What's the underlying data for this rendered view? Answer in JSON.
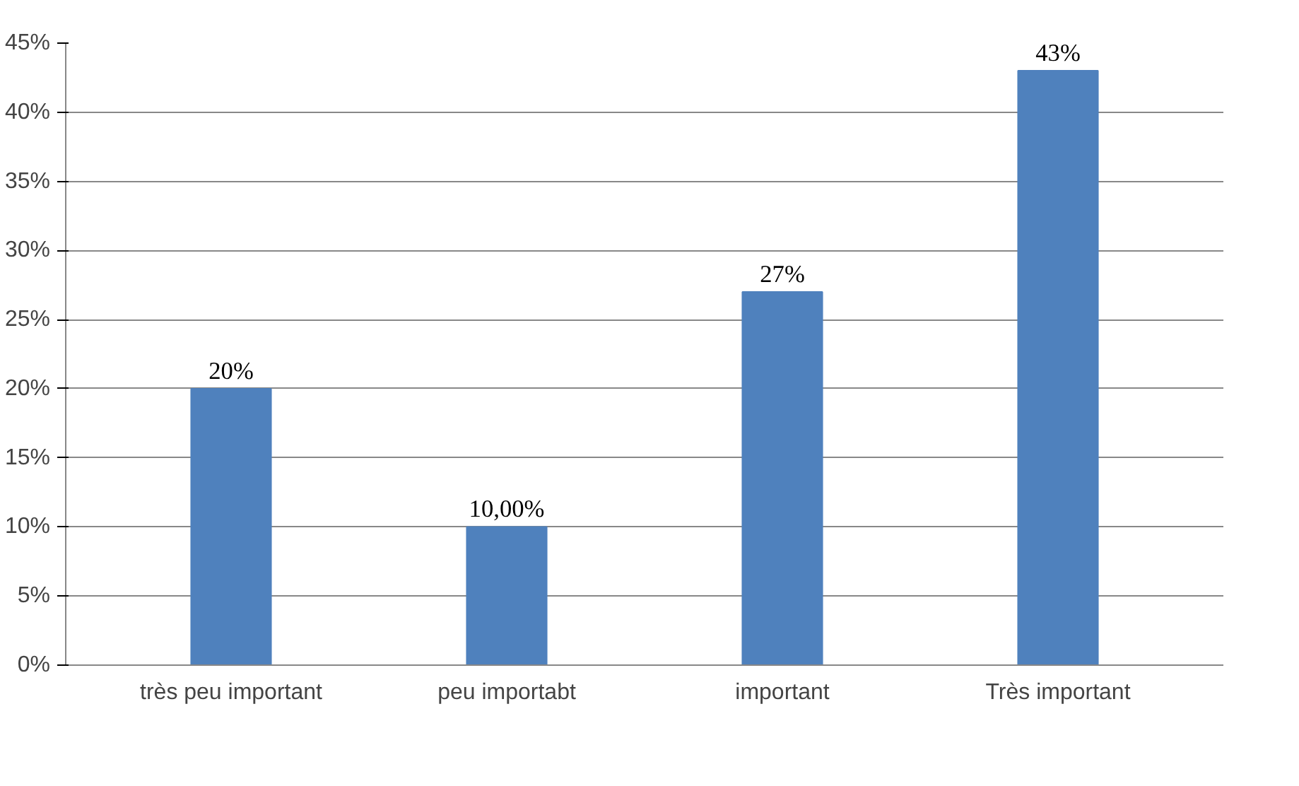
{
  "chart_data": {
    "type": "bar",
    "categories": [
      "très peu important",
      "peu importabt",
      "important",
      "Très important"
    ],
    "values": [
      20,
      10,
      27,
      43
    ],
    "value_labels": [
      "20%",
      "10,00%",
      "27%",
      "43%"
    ],
    "color": "#4f81bd",
    "ylim": [
      0,
      45
    ],
    "yticks": [
      {
        "value": 0,
        "label": "0%"
      },
      {
        "value": 5,
        "label": "5%"
      },
      {
        "value": 10,
        "label": "10%"
      },
      {
        "value": 15,
        "label": "15%"
      },
      {
        "value": 20,
        "label": "20%"
      },
      {
        "value": 25,
        "label": "25%"
      },
      {
        "value": 30,
        "label": "30%"
      },
      {
        "value": 35,
        "label": "35%"
      },
      {
        "value": 40,
        "label": "40%"
      },
      {
        "value": 45,
        "label": "45%"
      }
    ],
    "grid": "y"
  }
}
